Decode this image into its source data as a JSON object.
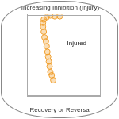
{
  "chart_data": {
    "type": "scatter",
    "title": "Increasing Inhibition (Injury)",
    "subtitle": "Recovery or Reversal",
    "annotation": "Injured",
    "x": [
      36,
      34,
      32,
      31,
      30,
      29,
      28,
      27,
      26,
      24,
      23,
      22,
      22,
      23,
      27,
      32,
      38,
      45
    ],
    "values": [
      19,
      25,
      29,
      36,
      42,
      48,
      54,
      61,
      67,
      72,
      79,
      85,
      90,
      94,
      97,
      99,
      98,
      98
    ],
    "color": "#f0a030",
    "marker": "circle",
    "xlim": [
      0,
      100
    ],
    "ylim": [
      0,
      100
    ],
    "grid": false,
    "tick_labels": false
  }
}
